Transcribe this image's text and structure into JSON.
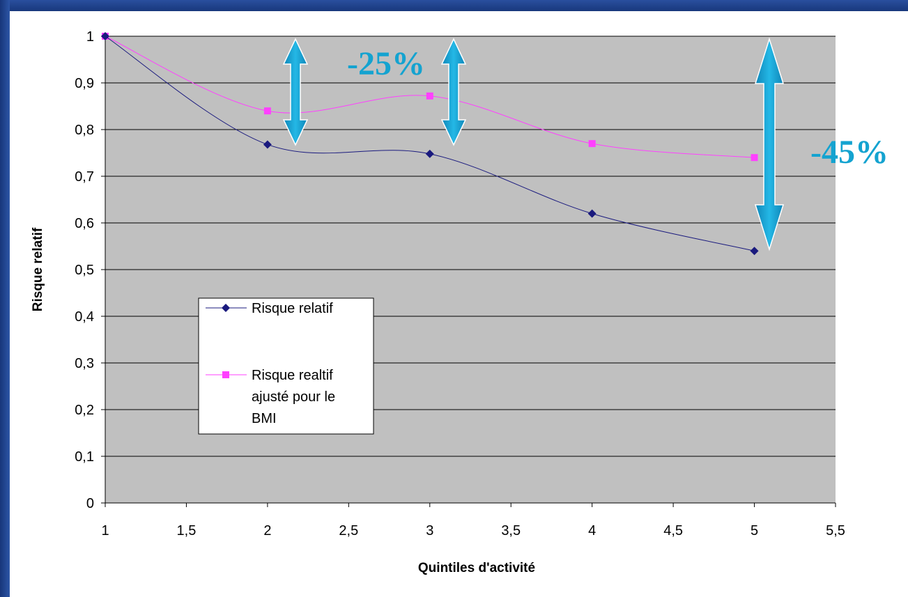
{
  "chart_data": {
    "type": "line",
    "title": "",
    "xlabel": "Quintiles d'activité",
    "ylabel": "Risque relatif",
    "xlim": [
      1,
      5.5
    ],
    "ylim": [
      0,
      1
    ],
    "x_ticks": [
      "1",
      "1,5",
      "2",
      "2,5",
      "3",
      "3,5",
      "4",
      "4,5",
      "5",
      "5,5"
    ],
    "y_ticks": [
      "0",
      "0,1",
      "0,2",
      "0,3",
      "0,4",
      "0,5",
      "0,6",
      "0,7",
      "0,8",
      "0,9",
      "1"
    ],
    "grid": "horizontal",
    "legend_placement": "center-left",
    "plot_background": "#c0c0c0",
    "series": [
      {
        "name": "Risque relatif",
        "marker": "diamond",
        "color": "#1a1a7e",
        "smooth": true,
        "points": [
          [
            1,
            1.0
          ],
          [
            2,
            0.768
          ],
          [
            3,
            0.748
          ],
          [
            4,
            0.62
          ],
          [
            5,
            0.54
          ]
        ]
      },
      {
        "name": "Risque realtif ajusté pour le BMI",
        "legend_lines": [
          "Risque realtif",
          "ajusté pour le",
          "BMI"
        ],
        "marker": "square",
        "color": "#ff40ff",
        "smooth": true,
        "points": [
          [
            1,
            1.0
          ],
          [
            2,
            0.84
          ],
          [
            3,
            0.872
          ],
          [
            4,
            0.77
          ],
          [
            5,
            0.74
          ]
        ]
      }
    ],
    "annotations": [
      {
        "text": "-25%",
        "color": "#14a3d0"
      },
      {
        "text": "-45%",
        "color": "#14a3d0"
      }
    ]
  }
}
